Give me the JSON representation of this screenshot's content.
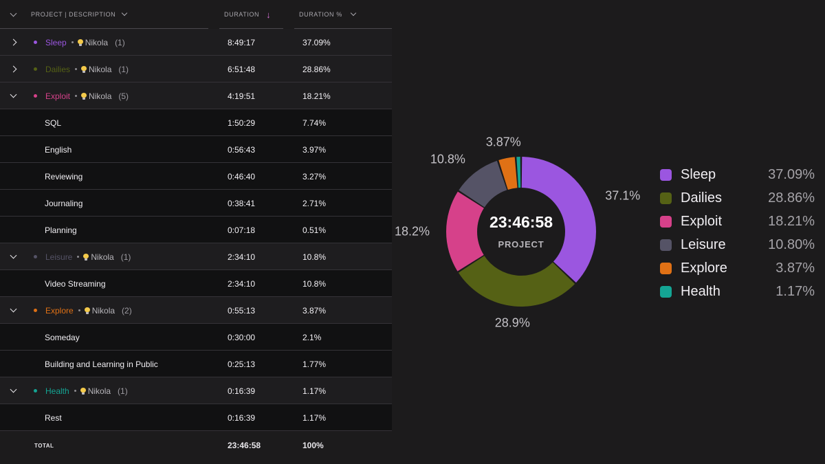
{
  "colors": {
    "Sleep": "#9b56e0",
    "Dailies": "#556115",
    "Exploit": "#d6418a",
    "Leisure": "#555366",
    "Explore": "#e07115",
    "Health": "#14a594"
  },
  "header": {
    "project_col": "PROJECT | DESCRIPTION",
    "duration_col": "DURATION",
    "pct_col": "DURATION %"
  },
  "groups": [
    {
      "name": "Sleep",
      "client": "Nikola",
      "count": "(1)",
      "duration": "8:49:17",
      "pct": "37.09%",
      "expanded": false,
      "children": []
    },
    {
      "name": "Dailies",
      "client": "Nikola",
      "count": "(1)",
      "duration": "6:51:48",
      "pct": "28.86%",
      "expanded": false,
      "children": []
    },
    {
      "name": "Exploit",
      "client": "Nikola",
      "count": "(5)",
      "duration": "4:19:51",
      "pct": "18.21%",
      "expanded": true,
      "children": [
        {
          "name": "SQL",
          "duration": "1:50:29",
          "pct": "7.74%"
        },
        {
          "name": "English",
          "duration": "0:56:43",
          "pct": "3.97%"
        },
        {
          "name": "Reviewing",
          "duration": "0:46:40",
          "pct": "3.27%"
        },
        {
          "name": "Journaling",
          "duration": "0:38:41",
          "pct": "2.71%"
        },
        {
          "name": "Planning",
          "duration": "0:07:18",
          "pct": "0.51%"
        }
      ]
    },
    {
      "name": "Leisure",
      "client": "Nikola",
      "count": "(1)",
      "duration": "2:34:10",
      "pct": "10.8%",
      "expanded": true,
      "children": [
        {
          "name": "Video Streaming",
          "duration": "2:34:10",
          "pct": "10.8%"
        }
      ]
    },
    {
      "name": "Explore",
      "client": "Nikola",
      "count": "(2)",
      "duration": "0:55:13",
      "pct": "3.87%",
      "expanded": true,
      "children": [
        {
          "name": "Someday",
          "duration": "0:30:00",
          "pct": "2.1%"
        },
        {
          "name": "Building and Learning in Public",
          "duration": "0:25:13",
          "pct": "1.77%"
        }
      ]
    },
    {
      "name": "Health",
      "client": "Nikola",
      "count": "(1)",
      "duration": "0:16:39",
      "pct": "1.17%",
      "expanded": true,
      "children": [
        {
          "name": "Rest",
          "duration": "0:16:39",
          "pct": "1.17%"
        }
      ]
    }
  ],
  "total": {
    "label": "TOTAL",
    "duration": "23:46:58",
    "pct": "100%"
  },
  "chart_data": {
    "type": "pie",
    "center_value": "23:46:58",
    "center_label": "PROJECT",
    "categories": [
      "Sleep",
      "Dailies",
      "Exploit",
      "Leisure",
      "Explore",
      "Health"
    ],
    "values": [
      37.09,
      28.86,
      18.21,
      10.8,
      3.87,
      1.17
    ],
    "slice_labels": [
      "37.1%",
      "28.9%",
      "18.2%",
      "10.8%",
      "3.87%",
      ""
    ],
    "legend": [
      {
        "name": "Sleep",
        "value": "37.09%"
      },
      {
        "name": "Dailies",
        "value": "28.86%"
      },
      {
        "name": "Exploit",
        "value": "18.21%"
      },
      {
        "name": "Leisure",
        "value": "10.80%"
      },
      {
        "name": "Explore",
        "value": "3.87%"
      },
      {
        "name": "Health",
        "value": "1.17%"
      }
    ],
    "legend_position": "right"
  }
}
